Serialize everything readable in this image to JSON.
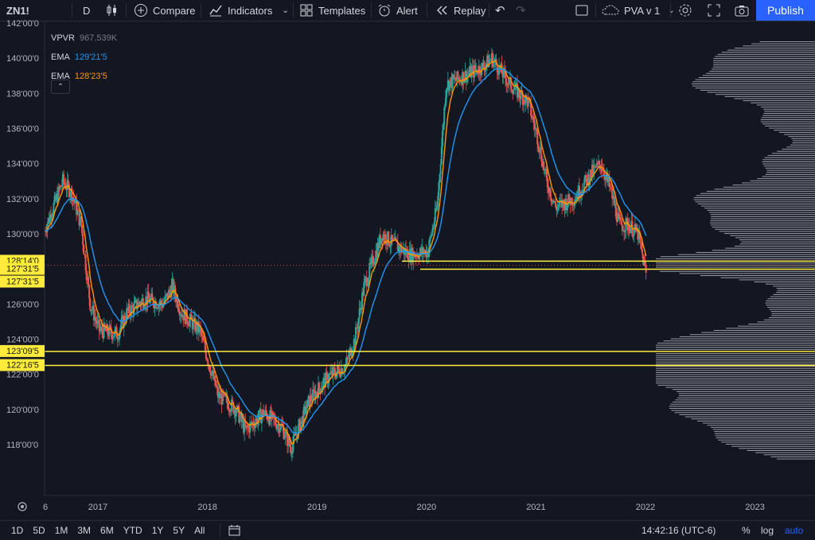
{
  "toolbar": {
    "symbol": "ZN1!",
    "interval": "D",
    "compare": "Compare",
    "indicators": "Indicators",
    "templates": "Templates",
    "alert": "Alert",
    "replay": "Replay",
    "layout_name": "PVA v 1",
    "publish": "Publish"
  },
  "legend": {
    "vpvr_label": "VPVR",
    "vpvr_value": "967.539K",
    "ema1_label": "EMA",
    "ema1_value": "129'21'5",
    "ema1_color": "#2196f3",
    "ema2_label": "EMA",
    "ema2_value": "128'23'5",
    "ema2_color": "#ff9800"
  },
  "price_axis": {
    "ticks": [
      "142'00'0",
      "140'00'0",
      "138'00'0",
      "136'00'0",
      "134'00'0",
      "132'00'0",
      "130'00'0",
      "126'00'0",
      "124'00'0",
      "122'00'0",
      "120'00'0",
      "118'00'0"
    ],
    "highlight_labels": [
      "128'14'0",
      "127'31'5",
      "127'31'5",
      "123'09'5",
      "122'16'5"
    ]
  },
  "time_axis": {
    "labels": [
      "6",
      "2017",
      "2018",
      "2019",
      "2020",
      "2021",
      "2022",
      "2023"
    ]
  },
  "bottom": {
    "ranges": [
      "1D",
      "5D",
      "1M",
      "3M",
      "6M",
      "YTD",
      "1Y",
      "5Y",
      "All"
    ],
    "clock": "14:42:16 (UTC-6)",
    "percent": "%",
    "log": "log",
    "auto": "auto"
  },
  "chart_data": {
    "type": "candlestick",
    "ylim": [
      117,
      142
    ],
    "x_range": [
      "2016-07",
      "2023-06"
    ],
    "close_series": [
      [
        "2016-07",
        130.2
      ],
      [
        "2016-09",
        133.0
      ],
      [
        "2016-10",
        132.3
      ],
      [
        "2016-11",
        130.5
      ],
      [
        "2016-12",
        126.0
      ],
      [
        "2017-01",
        124.5
      ],
      [
        "2017-03",
        124.3
      ],
      [
        "2017-04",
        125.5
      ],
      [
        "2017-06",
        126.3
      ],
      [
        "2017-08",
        126.0
      ],
      [
        "2017-09",
        127.0
      ],
      [
        "2017-10",
        125.5
      ],
      [
        "2017-12",
        124.5
      ],
      [
        "2018-02",
        120.8
      ],
      [
        "2018-04",
        120.0
      ],
      [
        "2018-05",
        118.8
      ],
      [
        "2018-07",
        119.8
      ],
      [
        "2018-09",
        119.0
      ],
      [
        "2018-10",
        117.8
      ],
      [
        "2018-12",
        120.5
      ],
      [
        "2019-02",
        121.8
      ],
      [
        "2019-04",
        122.5
      ],
      [
        "2019-05",
        124.0
      ],
      [
        "2019-06",
        127.0
      ],
      [
        "2019-08",
        130.0
      ],
      [
        "2019-09",
        129.5
      ],
      [
        "2019-11",
        128.8
      ],
      [
        "2020-01",
        129.0
      ],
      [
        "2020-02",
        131.5
      ],
      [
        "2020-03",
        138.5
      ],
      [
        "2020-05",
        139.0
      ],
      [
        "2020-07",
        139.5
      ],
      [
        "2020-08",
        140.0
      ],
      [
        "2020-10",
        138.5
      ],
      [
        "2020-12",
        137.5
      ],
      [
        "2021-01",
        135.5
      ],
      [
        "2021-02",
        133.0
      ],
      [
        "2021-03",
        131.5
      ],
      [
        "2021-05",
        132.0
      ],
      [
        "2021-07",
        133.5
      ],
      [
        "2021-08",
        134.0
      ],
      [
        "2021-09",
        132.5
      ],
      [
        "2021-10",
        130.5
      ],
      [
        "2021-11",
        130.5
      ],
      [
        "2021-12",
        130.0
      ],
      [
        "2022-01",
        127.5
      ]
    ],
    "ema_fast_color": "#ff9800",
    "ema_slow_color": "#2196f3",
    "horizontal_levels": [
      128.44,
      127.98,
      123.3,
      122.5
    ]
  }
}
